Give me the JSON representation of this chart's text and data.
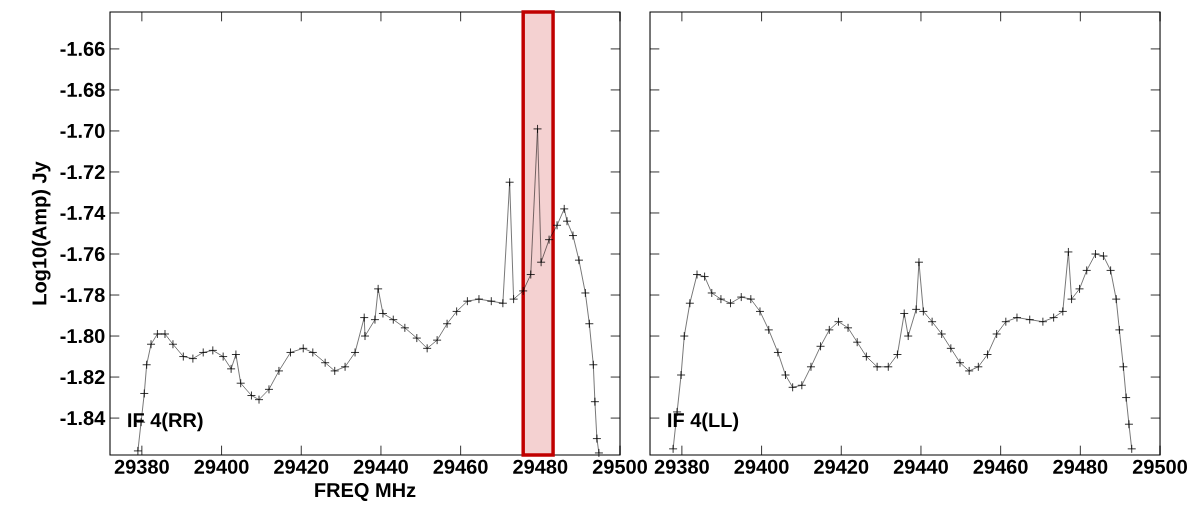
{
  "chart_data": [
    {
      "type": "line",
      "xlabel": "FREQ MHz",
      "ylabel": "Log10(Amp) Jy",
      "annotations": [
        "IF 4(RR)"
      ],
      "color": "#000000",
      "marker": "cross",
      "grid": false,
      "xlim": [
        29372,
        29500
      ],
      "xticks": [
        29380,
        29400,
        29420,
        29440,
        29460,
        29480,
        29500
      ],
      "ylim": [
        -1.858,
        -1.642
      ],
      "yticks": [
        -1.84,
        -1.82,
        {
          "value": -1.8,
          "label": "-1.80"
        },
        -1.78,
        -1.76,
        -1.74,
        -1.72,
        {
          "value": -1.7,
          "label": "-1.70"
        },
        -1.68,
        -1.66
      ],
      "bands": [
        {
          "axis": "x",
          "from": 29475.7,
          "to": 29483.2,
          "color": "#c00000"
        }
      ],
      "x": [
        29379.0,
        29379.8,
        29380.6,
        29381.2,
        29382.3,
        29383.9,
        29385.8,
        29387.8,
        29390.4,
        29392.8,
        29395.4,
        29397.8,
        29400.4,
        29402.4,
        29403.6,
        29404.8,
        29407.5,
        29409.4,
        29411.9,
        29414.4,
        29417.3,
        29420.5,
        29422.9,
        29426.0,
        29428.4,
        29431.0,
        29433.5,
        29435.8,
        29436.0,
        29438.5,
        29439.3,
        29440.5,
        29443.1,
        29446.0,
        29449.0,
        29451.6,
        29454.1,
        29456.6,
        29459.0,
        29461.7,
        29464.6,
        29467.7,
        29470.6,
        29472.3,
        29473.3,
        29475.7,
        29477.6,
        29479.3,
        29480.2,
        29482.2,
        29484.2,
        29486.0,
        29486.7,
        29488.2,
        29489.7,
        29491.3,
        29492.3,
        29493.3,
        29493.7,
        29494.2,
        29494.7
      ],
      "values": [
        -1.856,
        -1.842,
        -1.828,
        -1.814,
        -1.804,
        -1.799,
        -1.799,
        -1.804,
        -1.81,
        -1.811,
        -1.808,
        -1.807,
        -1.81,
        -1.816,
        -1.809,
        -1.823,
        -1.829,
        -1.831,
        -1.826,
        -1.817,
        -1.808,
        -1.806,
        -1.808,
        -1.813,
        -1.817,
        -1.815,
        -1.808,
        -1.791,
        -1.8,
        -1.792,
        -1.777,
        -1.789,
        -1.792,
        -1.796,
        -1.801,
        -1.806,
        -1.802,
        -1.794,
        -1.788,
        -1.783,
        -1.782,
        -1.783,
        -1.784,
        -1.725,
        -1.782,
        -1.778,
        -1.77,
        -1.699,
        -1.764,
        -1.753,
        -1.746,
        -1.738,
        -1.744,
        -1.751,
        -1.763,
        -1.779,
        -1.794,
        -1.814,
        -1.832,
        -1.85,
        -1.857
      ]
    },
    {
      "type": "line",
      "annotations": [
        "IF 4(LL)"
      ],
      "color": "#000000",
      "marker": "cross",
      "grid": false,
      "tick_labels": "x",
      "xlim": [
        29372,
        29500
      ],
      "xticks": [
        29380,
        29400,
        29420,
        29440,
        29460,
        29480,
        29500
      ],
      "ylim": [
        -1.858,
        -1.642
      ],
      "yticks": [
        -1.84,
        -1.82,
        -1.8,
        -1.78,
        -1.76,
        -1.74,
        -1.72,
        -1.7,
        -1.68,
        -1.66
      ],
      "x": [
        29377.8,
        29378.8,
        29379.8,
        29380.6,
        29382.0,
        29383.8,
        29385.7,
        29387.5,
        29389.8,
        29392.2,
        29394.9,
        29397.3,
        29399.6,
        29401.8,
        29404.1,
        29406.0,
        29407.8,
        29410.1,
        29412.4,
        29414.8,
        29417.0,
        29419.3,
        29421.7,
        29424.0,
        29426.3,
        29429.0,
        29431.8,
        29434.1,
        29435.8,
        29436.8,
        29438.8,
        29439.5,
        29440.6,
        29442.8,
        29445.2,
        29447.5,
        29449.8,
        29452.1,
        29454.4,
        29456.7,
        29459.0,
        29461.3,
        29464.1,
        29467.3,
        29470.6,
        29473.3,
        29475.6,
        29477.0,
        29477.8,
        29479.8,
        29481.6,
        29483.8,
        29485.8,
        29487.6,
        29489.0,
        29489.8,
        29490.8,
        29491.5,
        29492.2,
        29492.9
      ],
      "values": [
        -1.855,
        -1.837,
        -1.819,
        -1.8,
        -1.784,
        -1.77,
        -1.771,
        -1.779,
        -1.782,
        -1.784,
        -1.781,
        -1.782,
        -1.788,
        -1.797,
        -1.808,
        -1.819,
        -1.825,
        -1.824,
        -1.815,
        -1.805,
        -1.797,
        -1.793,
        -1.796,
        -1.803,
        -1.81,
        -1.815,
        -1.815,
        -1.809,
        -1.789,
        -1.8,
        -1.787,
        -1.764,
        -1.788,
        -1.793,
        -1.799,
        -1.806,
        -1.813,
        -1.817,
        -1.815,
        -1.809,
        -1.799,
        -1.793,
        -1.791,
        -1.792,
        -1.793,
        -1.791,
        -1.788,
        -1.759,
        -1.782,
        -1.777,
        -1.768,
        -1.76,
        -1.761,
        -1.768,
        -1.782,
        -1.797,
        -1.815,
        -1.83,
        -1.843,
        -1.855
      ]
    }
  ]
}
